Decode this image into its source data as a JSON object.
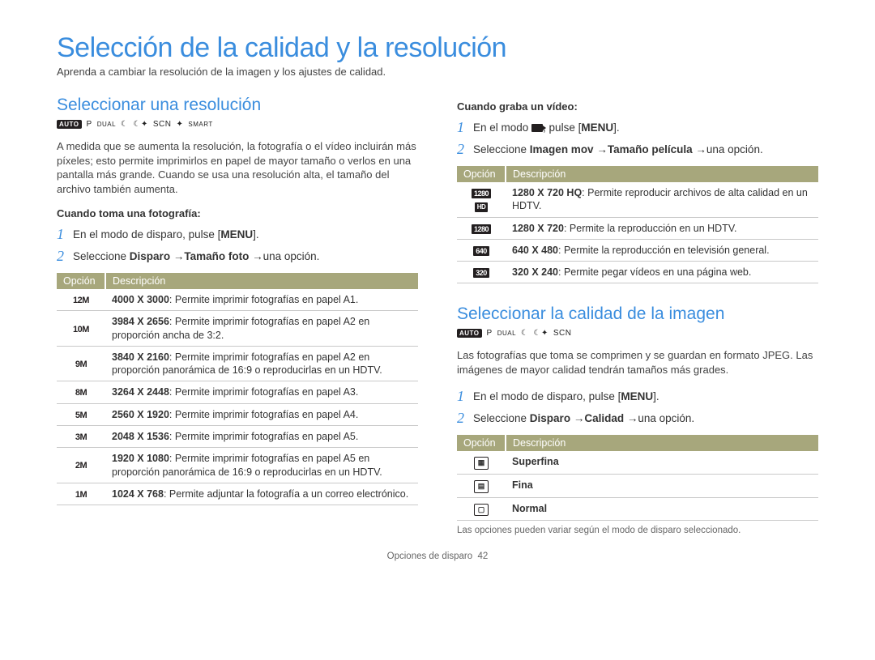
{
  "page": {
    "title": "Selección de la calidad y la resolución",
    "intro": "Aprenda a cambiar la resolución de la imagen y los ajustes de calidad.",
    "footer_section": "Opciones de disparo",
    "footer_page": "42"
  },
  "left": {
    "heading": "Seleccionar una resolución",
    "modes": [
      "AUTO",
      "P",
      "DUAL",
      "☾",
      "☾✦",
      "SCN",
      "✦",
      "SMART"
    ],
    "para": "A medida que se aumenta la resolución, la fotografía o el vídeo incluirán más píxeles; esto permite imprimirlos en papel de mayor tamaño o verlos en una pantalla más grande. Cuando se usa una resolución alta, el tamaño del archivo también aumenta.",
    "sub": "Cuando toma una fotografía:",
    "steps": [
      {
        "n": "1",
        "plain_pre": "En el modo de disparo, pulse [",
        "menu": "MENU",
        "plain_post": "]."
      },
      {
        "n": "2",
        "pre": "Seleccione ",
        "b1": "Disparo",
        "b2": "Tamaño foto",
        "post": "una opción."
      }
    ],
    "table": {
      "h1": "Opción",
      "h2": "Descripción",
      "rows": [
        {
          "icon": "12M",
          "b": "4000 X 3000",
          "t": ": Permite imprimir fotografías en papel A1."
        },
        {
          "icon": "10M",
          "b": "3984 X 2656",
          "t": ": Permite imprimir fotografías en papel A2 en proporción ancha de 3:2."
        },
        {
          "icon": "9M",
          "b": "3840 X 2160",
          "t": ": Permite imprimir fotografías en papel A2 en proporción panorámica de 16:9 o reproducirlas en un HDTV."
        },
        {
          "icon": "8M",
          "b": "3264 X 2448",
          "t": ": Permite imprimir fotografías en papel A3."
        },
        {
          "icon": "5M",
          "b": "2560 X 1920",
          "t": ": Permite imprimir fotografías en papel A4."
        },
        {
          "icon": "3M",
          "b": "2048 X 1536",
          "t": ": Permite imprimir fotografías en papel A5."
        },
        {
          "icon": "2M",
          "b": "1920 X 1080",
          "t": ": Permite imprimir fotografías en papel A5 en proporción panorámica de 16:9 o reproducirlas en un HDTV."
        },
        {
          "icon": "1M",
          "b": "1024 X 768",
          "t": ": Permite adjuntar la fotografía a un correo electrónico."
        }
      ]
    }
  },
  "right": {
    "sub_video": "Cuando graba un vídeo:",
    "vsteps": [
      {
        "n": "1",
        "pre": "En el modo ",
        "post": ", pulse [",
        "menu": "MENU",
        "end": "]."
      },
      {
        "n": "2",
        "pre": "Seleccione ",
        "b1": "Imagen mov",
        "b2": "Tamaño película",
        "post": "una opción."
      }
    ],
    "vtable": {
      "h1": "Opción",
      "h2": "Descripción",
      "rows": [
        {
          "icon": "1280",
          "sub": "HD",
          "b": "1280 X 720 HQ",
          "t": ": Permite reproducir archivos de alta calidad en un HDTV."
        },
        {
          "icon": "1280",
          "b": "1280 X 720",
          "t": ": Permite la reproducción en un HDTV."
        },
        {
          "icon": "640",
          "b": "640 X 480",
          "t": ": Permite la reproducción en televisión general."
        },
        {
          "icon": "320",
          "b": "320 X 240",
          "t": ": Permite pegar vídeos en una página web."
        }
      ]
    },
    "heading2": "Seleccionar la calidad de la imagen",
    "modes2": [
      "AUTO",
      "P",
      "DUAL",
      "☾",
      "☾✦",
      "SCN"
    ],
    "para2": "Las fotografías que toma se comprimen y se guardan en formato JPEG. Las imágenes de mayor calidad tendrán tamaños más grades.",
    "qsteps": [
      {
        "n": "1",
        "plain_pre": "En el modo de disparo, pulse [",
        "menu": "MENU",
        "plain_post": "]."
      },
      {
        "n": "2",
        "pre": "Seleccione ",
        "b1": "Disparo",
        "b2": "Calidad",
        "post": "una opción."
      }
    ],
    "qtable": {
      "h1": "Opción",
      "h2": "Descripción",
      "rows": [
        {
          "label": "Superfina"
        },
        {
          "label": "Fina"
        },
        {
          "label": "Normal"
        }
      ]
    },
    "footnote": "Las opciones pueden variar según el modo de disparo seleccionado."
  }
}
